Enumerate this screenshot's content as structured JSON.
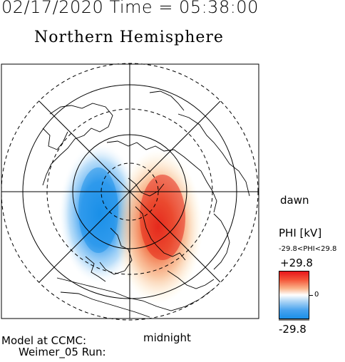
{
  "header": {
    "datetime": "02/17/2020  Time = 05:38:00",
    "hemisphere": "Northern Hemisphere"
  },
  "map": {
    "labels": {
      "dawn": "dawn",
      "midnight": "midnight"
    },
    "colors": {
      "positive": "#e8161c",
      "negative": "#1a8fe8",
      "background": "#ffffff",
      "lines": "#000000"
    },
    "cells": [
      {
        "name": "negative-potential-cell",
        "sign": "negative",
        "peak_kv": -29.8
      },
      {
        "name": "positive-potential-cell",
        "sign": "positive",
        "peak_kv": 29.8
      }
    ]
  },
  "colorbar": {
    "title": "PHI [kV]",
    "range_text": "-29.8<PHI<29.8",
    "max_label": "+29.8",
    "mid_label": "0",
    "min_label": "-29.8",
    "max": 29.8,
    "min": -29.8
  },
  "footer": {
    "model_line": "Model at CCMC:",
    "run_line": "Weimer_05 Run:"
  }
}
